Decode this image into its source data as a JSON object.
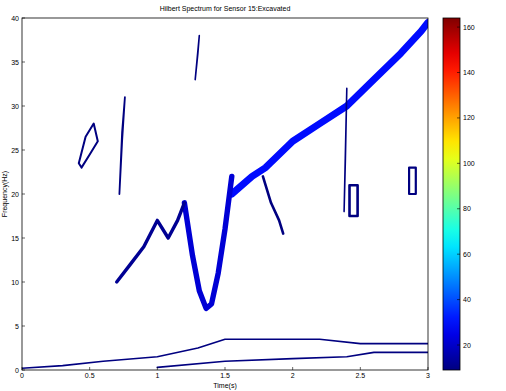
{
  "chart_data": {
    "type": "contour",
    "title": "Hilbert Spectrum for Sensor 15:Excavated",
    "x_label": "Time(s)",
    "y_label": "Frequency(Hz)",
    "xlim": [
      0,
      3
    ],
    "ylim": [
      0,
      40
    ],
    "xticks": [
      0,
      0.5,
      1,
      1.5,
      2,
      2.5,
      3
    ],
    "yticks": [
      0,
      5,
      10,
      15,
      20,
      25,
      30,
      35,
      40
    ],
    "series": [
      {
        "x": [
          1.55,
          1.7,
          1.8,
          2.0,
          2.2,
          2.4,
          2.6,
          2.8,
          2.95,
          3.0
        ],
        "values": [
          20,
          22,
          23,
          26,
          28,
          30,
          33,
          36,
          38.5,
          39.5
        ],
        "level": 30
      },
      {
        "x": [
          1.2,
          1.26,
          1.31,
          1.36,
          1.4,
          1.45,
          1.5,
          1.55
        ],
        "values": [
          19,
          13,
          9,
          7,
          7.5,
          11,
          16,
          22
        ],
        "level": 22
      },
      {
        "x": [
          0.7,
          0.8,
          0.9,
          1.0,
          1.08,
          1.15,
          1.2
        ],
        "values": [
          10,
          12,
          14,
          17,
          15,
          17,
          19
        ],
        "level": 12
      },
      {
        "x": [
          0.42,
          0.47,
          0.53,
          0.56,
          0.5,
          0.44,
          0.42
        ],
        "values": [
          23.5,
          26.5,
          28,
          26,
          24.5,
          23,
          23.5
        ],
        "level": 5
      },
      {
        "x": [
          0.72,
          0.74,
          0.76,
          0.74,
          0.72
        ],
        "values": [
          20,
          26,
          31,
          27,
          20
        ],
        "level": 4
      },
      {
        "x": [
          1.78,
          1.84,
          1.9,
          1.93
        ],
        "values": [
          22,
          19,
          17,
          15.5
        ],
        "level": 8
      },
      {
        "x": [
          2.42,
          2.48,
          2.48,
          2.42,
          2.42
        ],
        "values": [
          17.5,
          17.5,
          21,
          21,
          17.5
        ],
        "level": 8
      },
      {
        "x": [
          2.86,
          2.91,
          2.91,
          2.86,
          2.86
        ],
        "values": [
          20,
          20,
          23,
          23,
          20
        ],
        "level": 6
      },
      {
        "x": [
          2.38,
          2.39,
          2.4,
          2.38
        ],
        "values": [
          18,
          24,
          32,
          18
        ],
        "level": 3
      },
      {
        "x": [
          1.28,
          1.3,
          1.31,
          1.28
        ],
        "values": [
          33,
          36,
          38,
          33
        ],
        "level": 3
      },
      {
        "x": [
          0.0,
          0.3,
          0.6,
          1.0,
          1.3,
          1.5,
          1.8,
          2.2,
          2.5,
          3.0
        ],
        "values": [
          0.2,
          0.5,
          1,
          1.5,
          2.5,
          3.5,
          3.5,
          3.5,
          3,
          3
        ],
        "level": 3
      },
      {
        "x": [
          1.0,
          1.5,
          2.0,
          2.4,
          2.6,
          3.0
        ],
        "values": [
          0.3,
          1,
          1.3,
          1.5,
          2,
          2
        ],
        "level": 3
      }
    ],
    "colorbar": {
      "range": [
        9,
        164
      ],
      "ticks": [
        20,
        40,
        60,
        80,
        100,
        120,
        140,
        160
      ]
    }
  }
}
